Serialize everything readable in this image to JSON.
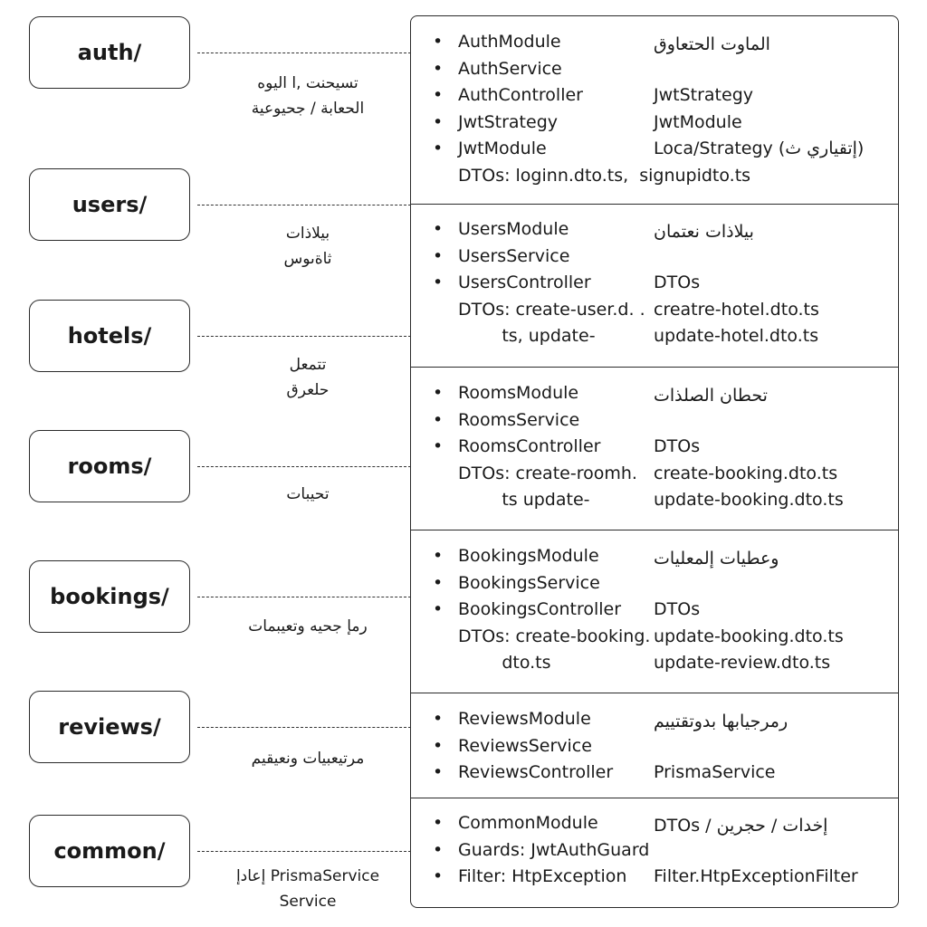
{
  "folders": [
    {
      "name": "auth/",
      "desc": "تسيحنت ,ا اليوه\nالحعابة / جحيوعية"
    },
    {
      "name": "users/",
      "desc": "بيلاذات\nثاةىوس"
    },
    {
      "name": "hotels/",
      "desc": "تتمعل\nحلعرق"
    },
    {
      "name": "rooms/",
      "desc": "تحيبات"
    },
    {
      "name": "bookings/",
      "desc": "رمإ جحيه وتعيبمات"
    },
    {
      "name": "reviews/",
      "desc": "مرتيعبيات ونعيقيم"
    },
    {
      "name": "common/",
      "desc": "PrismaService إعادإ\nService"
    }
  ],
  "sections": [
    {
      "bullets": [
        "AuthModule",
        "AuthService",
        "AuthController",
        "JwtStrategy",
        "JwtModule"
      ],
      "extra": [
        "DTOs: loginn.dto.ts,  signupidto.ts"
      ],
      "right": [
        "الماوت الحتعاوق",
        "",
        "JwtStrategy",
        "JwtModule",
        "Loca/Strategy (إتقياري ث)"
      ]
    },
    {
      "bullets": [
        "UsersModule",
        "UsersService",
        "UsersController"
      ],
      "extra": [
        "DTOs: create-user.d. .",
        "        ts, update-"
      ],
      "right": [
        "بيلاذات نعتمان",
        "",
        "DTOs",
        "creatre-hotel.dto.ts",
        "update-hotel.dto.ts"
      ]
    },
    {
      "bullets": [
        "RoomsModule",
        "RoomsService",
        "RoomsController"
      ],
      "extra": [
        "DTOs: create-roomh.",
        "        ts update-"
      ],
      "right": [
        "تحطان الصلذات",
        "",
        "DTOs",
        "create-booking.dto.ts",
        "update-booking.dto.ts"
      ]
    },
    {
      "bullets": [
        "BookingsModule",
        "BookingsService",
        "BookingsController"
      ],
      "extra": [
        "DTOs: create-booking.",
        "        dto.ts"
      ],
      "right": [
        "وعطيات إلمعليات",
        "",
        "DTOs",
        "update-booking.dto.ts",
        "update-review.dto.ts"
      ]
    },
    {
      "bullets": [
        "ReviewsModule",
        "ReviewsService",
        "ReviewsController"
      ],
      "extra": [],
      "right": [
        "رمرجيابها بدوتقتييم",
        "",
        "PrismaService"
      ]
    },
    {
      "bullets": [
        "CommonModule",
        "Guards: JwtAuthGuard",
        "Filter: HtpException"
      ],
      "extra": [],
      "right": [
        "DTOs / إخدات / حجرين",
        "",
        "Filter.HtpExceptionFilter"
      ]
    }
  ]
}
